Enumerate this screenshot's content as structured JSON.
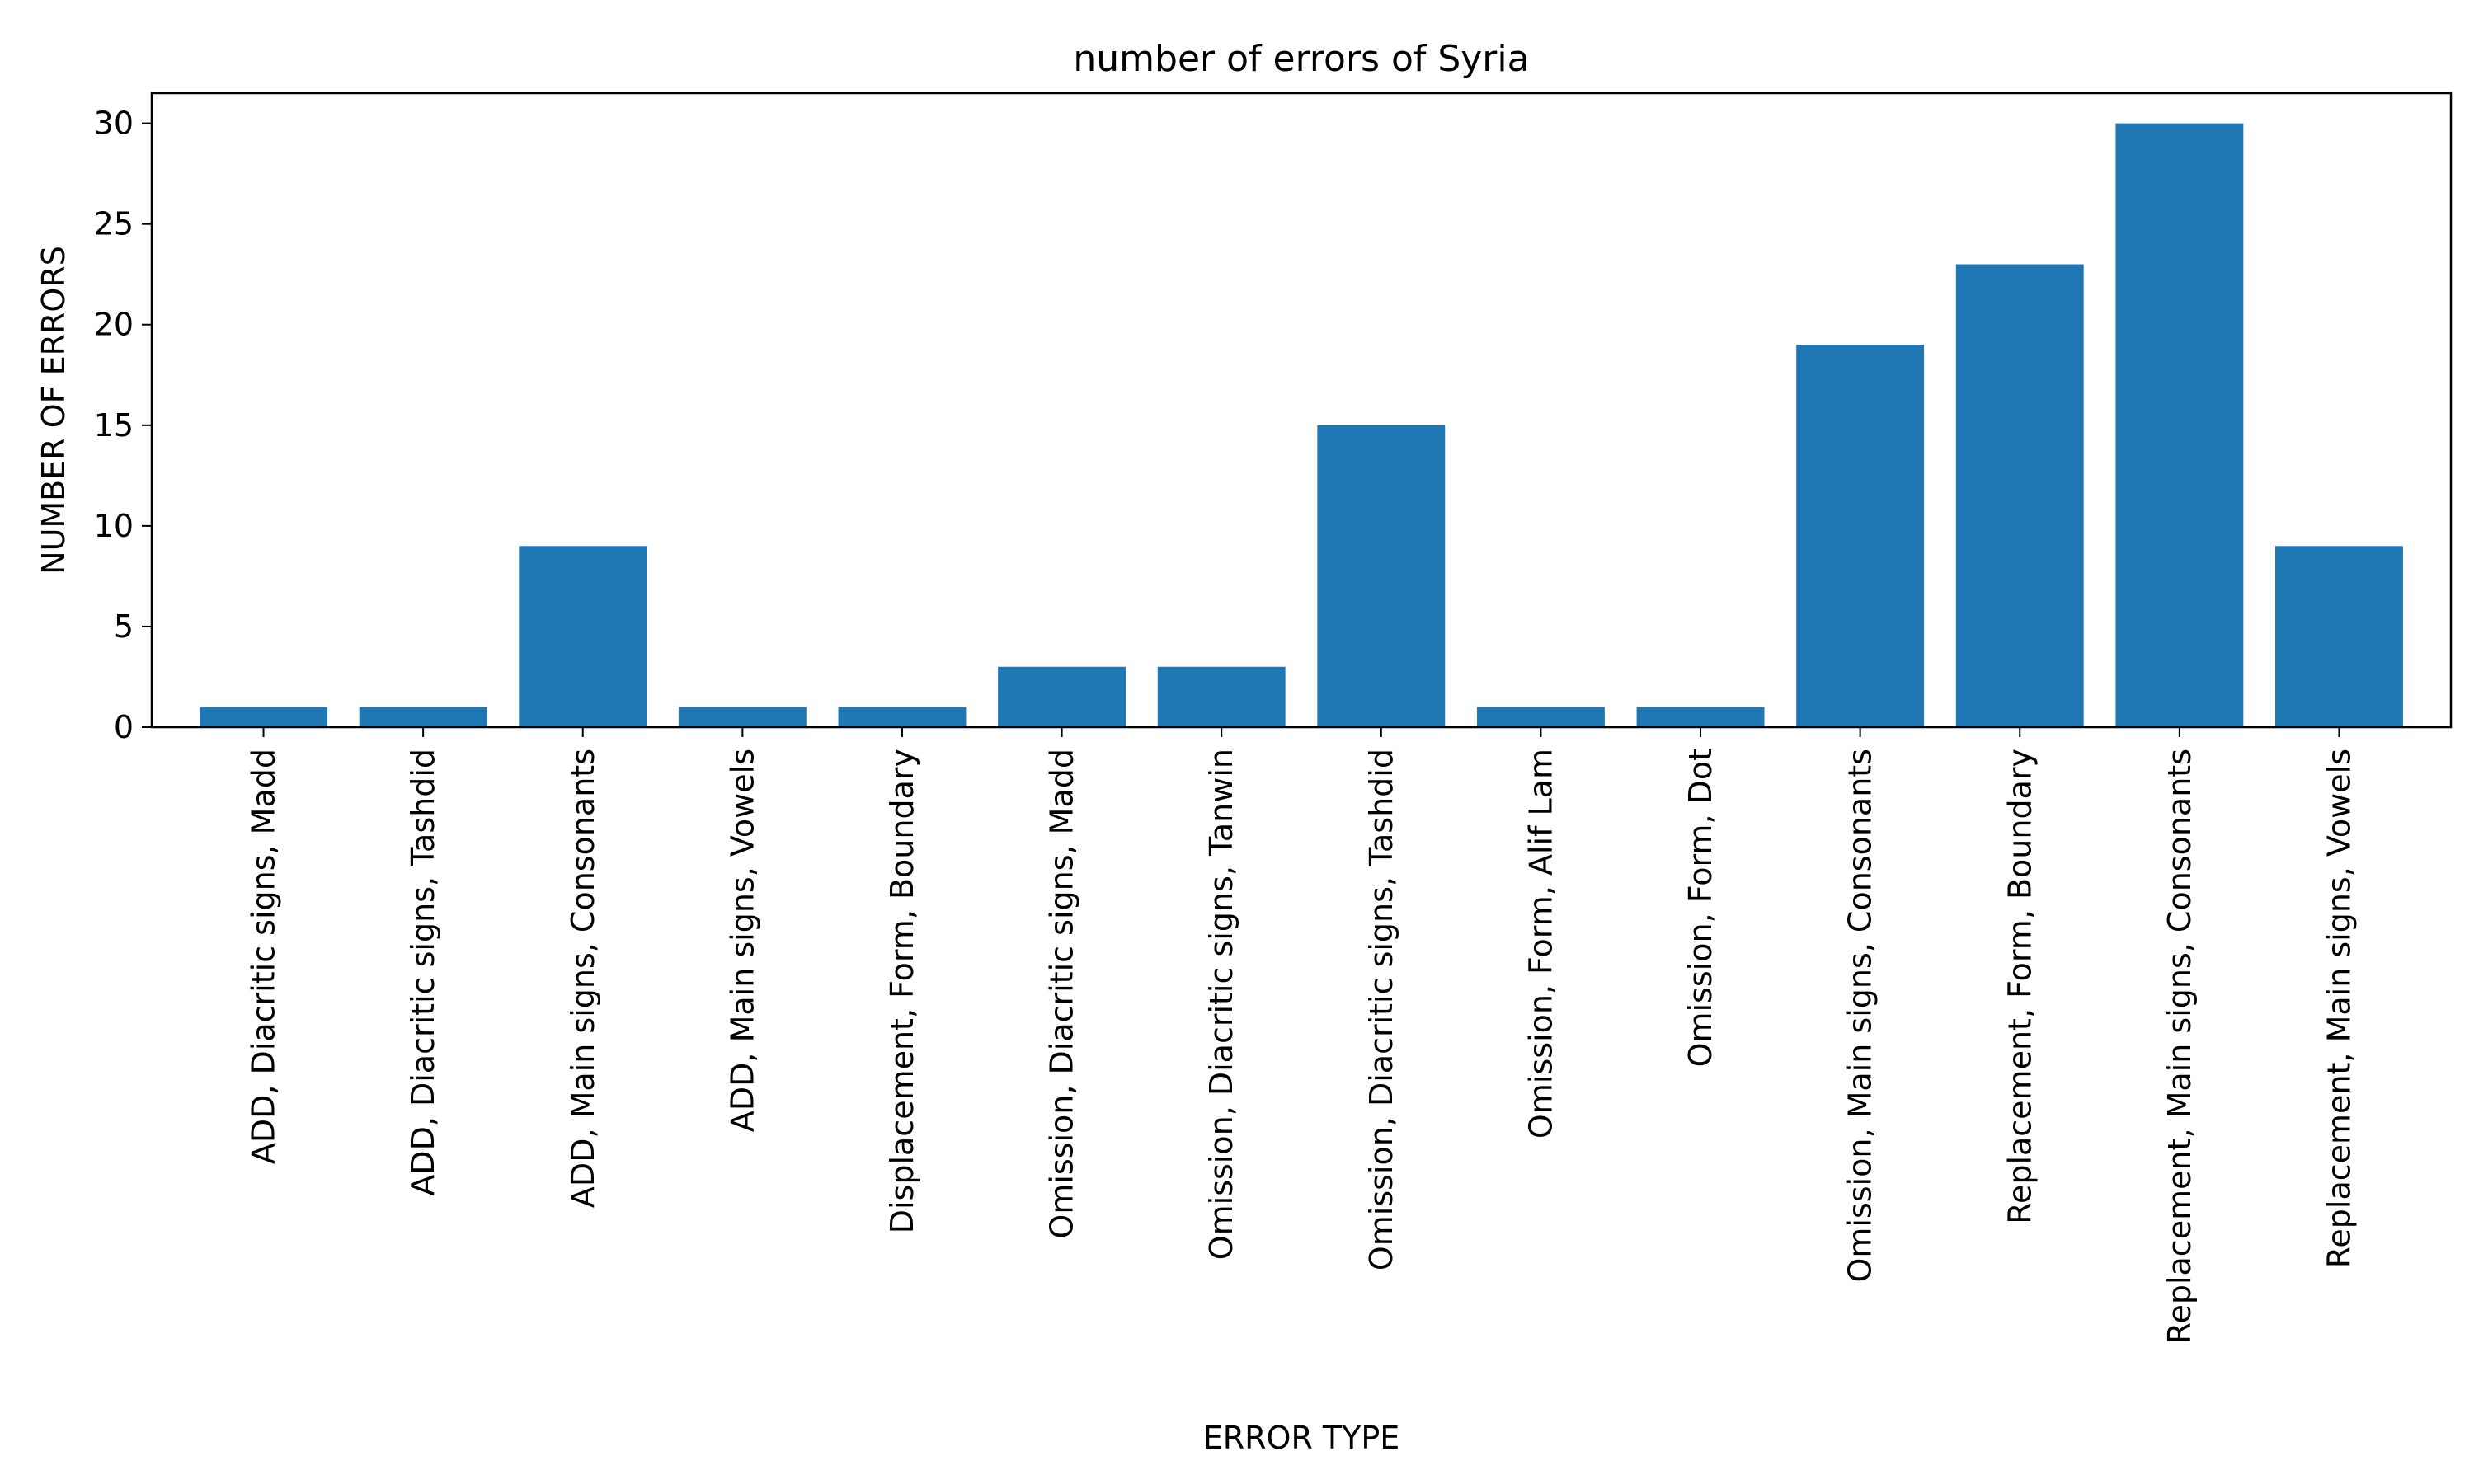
{
  "chart_data": {
    "type": "bar",
    "title": "number of errors of Syria",
    "xlabel": "ERROR TYPE",
    "ylabel": "NUMBER OF ERRORS",
    "categories": [
      "ADD, Diacritic signs, Madd",
      "ADD, Diacritic signs, Tashdid",
      "ADD, Main signs, Consonants",
      "ADD, Main signs, Vowels",
      "Displacement, Form, Boundary",
      "Omission, Diacritic signs, Madd",
      "Omission, Diacritic signs, Tanwin",
      "Omission, Diacritic signs, Tashdid",
      "Omission, Form, Alif Lam",
      "Omission, Form, Dot",
      "Omission, Main signs, Consonants",
      "Replacement, Form, Boundary",
      "Replacement, Main signs, Consonants",
      "Replacement, Main signs, Vowels"
    ],
    "values": [
      1,
      1,
      9,
      1,
      1,
      3,
      3,
      15,
      1,
      1,
      19,
      23,
      30,
      9
    ],
    "ylim": [
      0,
      31.5
    ],
    "yticks": [
      0,
      5,
      10,
      15,
      20,
      25,
      30
    ],
    "bar_color": "#1f77b4",
    "grid": false,
    "legend": "none"
  }
}
